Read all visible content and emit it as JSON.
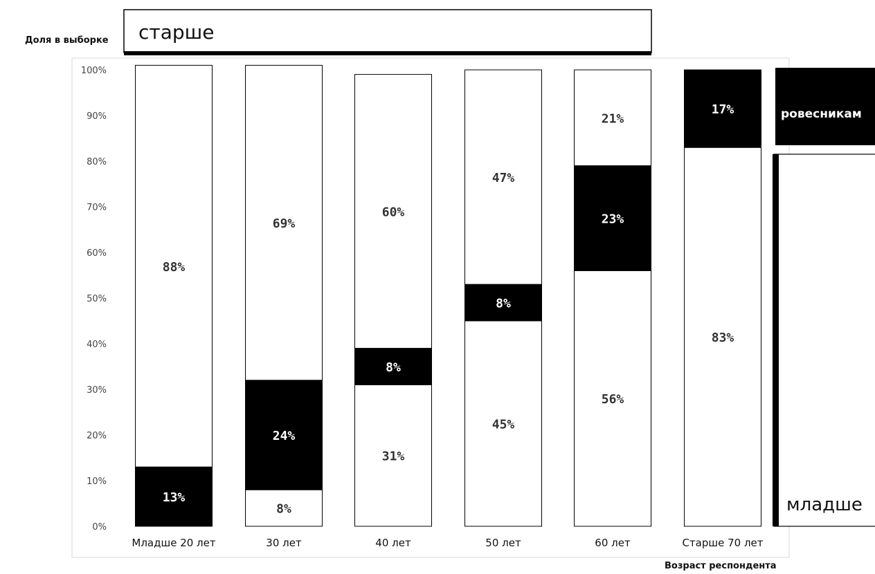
{
  "chart_data": {
    "type": "bar",
    "stacked": true,
    "categories": [
      "Младше 20 лет",
      "30 лет",
      "40 лет",
      "50 лет",
      "60 лет",
      "Старше 70  лет"
    ],
    "series": [
      {
        "name": "младше",
        "color": "#ffffff",
        "values": [
          0,
          8,
          31,
          45,
          56,
          83
        ],
        "labels": [
          "",
          "8%",
          "31%",
          "45%",
          "56%",
          "83%"
        ]
      },
      {
        "name": "ровесникам",
        "color": "#000000",
        "values": [
          13,
          24,
          8,
          8,
          23,
          17
        ],
        "labels": [
          "13%",
          "24%",
          "8%",
          "8%",
          "23%",
          "17%"
        ]
      },
      {
        "name": "старше",
        "color": "#ffffff",
        "values": [
          88,
          69,
          60,
          47,
          21,
          0
        ],
        "labels": [
          "88%",
          "69%",
          "60%",
          "47%",
          "21%",
          ""
        ]
      }
    ],
    "ylabel": "Доля в выборке",
    "xlabel": "Возраст респондента",
    "ylim": [
      0,
      100
    ],
    "yticks": [
      "0%",
      "10%",
      "20%",
      "30%",
      "40%",
      "50%",
      "60%",
      "70%",
      "80%",
      "90%",
      "100%"
    ],
    "grid": false
  }
}
